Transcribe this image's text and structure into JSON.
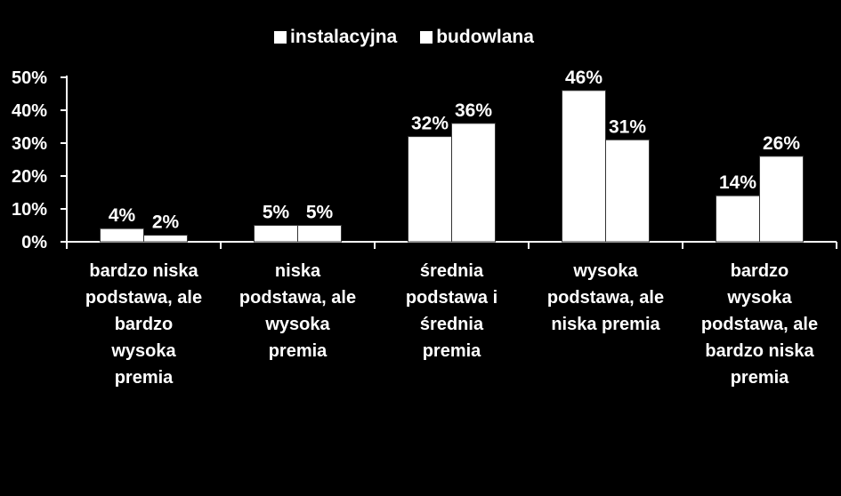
{
  "chart_data": {
    "type": "bar",
    "categories": [
      "bardzo niska podstawa, ale bardzo wysoka premia",
      "niska podstawa, ale wysoka premia",
      "średnia podstawa i średnia premia",
      "wysoka podstawa, ale niska premia",
      "bardzo wysoka podstawa, ale bardzo niska premia"
    ],
    "category_lines": [
      [
        "bardzo niska",
        "podstawa, ale",
        "bardzo",
        "wysoka",
        "premia"
      ],
      [
        "niska",
        "podstawa, ale",
        "wysoka",
        "premia"
      ],
      [
        "średnia",
        "podstawa i",
        "średnia",
        "premia"
      ],
      [
        "wysoka",
        "podstawa, ale",
        "niska premia"
      ],
      [
        "bardzo",
        "wysoka",
        "podstawa, ale",
        "bardzo niska",
        "premia"
      ]
    ],
    "series": [
      {
        "name": "instalacyjna",
        "values": [
          4,
          5,
          32,
          46,
          14
        ],
        "labels": [
          "4%",
          "5%",
          "32%",
          "46%",
          "14%"
        ]
      },
      {
        "name": "budowlana",
        "values": [
          2,
          5,
          36,
          31,
          26
        ],
        "labels": [
          "2%",
          "5%",
          "36%",
          "31%",
          "26%"
        ]
      }
    ],
    "ylim": [
      0,
      50
    ],
    "yticks": [
      "0%",
      "10%",
      "20%",
      "30%",
      "40%",
      "50%"
    ],
    "legend_position": "top-center",
    "grid": false,
    "colors": {
      "background": "#000000",
      "bars": "#ffffff",
      "text": "#ffffff"
    }
  }
}
